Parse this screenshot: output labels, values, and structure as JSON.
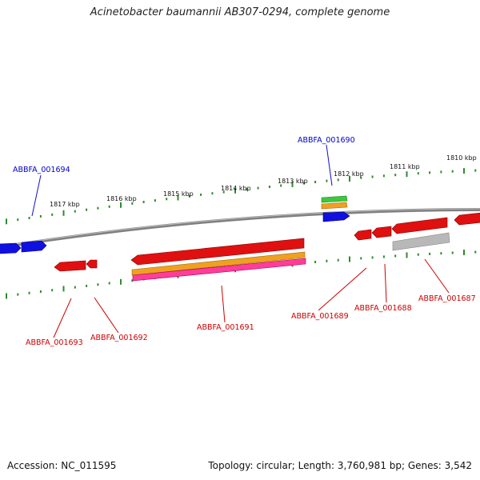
{
  "title": "Acinetobacter baumannii AB307-0294, complete genome",
  "footer": {
    "accession": "Accession: NC_011595",
    "summary": "Topology: circular; Length: 3,760,981 bp; Genes: 3,542"
  },
  "colors": {
    "backbone": "#808080",
    "tick": "#2e8b2e",
    "red": "#e01010",
    "blue": "#1010e0",
    "orange": "#f0a020",
    "pink": "#ff3d9a",
    "green": "#3cc83c",
    "gray": "#b8b8b8",
    "label_red": "#cc0000",
    "label_blue": "#0000cc"
  },
  "scale_labels": [
    "1817 kbp",
    "1816 kbp",
    "1815 kbp",
    "1814 kbp",
    "1813 kbp",
    "1812 kbp",
    "1811 kbp",
    "1810 kbp"
  ],
  "gene_labels": {
    "g1694": "ABBFA_001694",
    "g1690": "ABBFA_001690",
    "g1693": "ABBFA_001693",
    "g1692": "ABBFA_001692",
    "g1691": "ABBFA_001691",
    "g1689": "ABBFA_001689",
    "g1688": "ABBFA_001688",
    "g1687": "ABBFA_001687"
  }
}
